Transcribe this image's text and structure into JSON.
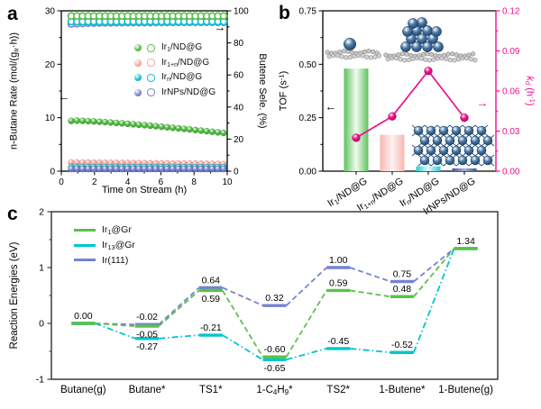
{
  "figure": {
    "panels": {
      "a": "a",
      "b": "b",
      "c": "c"
    }
  },
  "icons": {
    "left_arrow": "←",
    "right_arrow": "→"
  },
  "chart_data": [
    {
      "panel": "a",
      "type": "scatter",
      "x_label_html": "Time on Stream (h)",
      "y_left_label_html": "n-Butane Rate (mol/(g<sub>Ir</sub>·h))",
      "y_right_label_html": "Butene Sele. (%)",
      "x_range": [
        0,
        10
      ],
      "x_ticks": [
        0,
        2,
        4,
        6,
        8,
        10
      ],
      "x_minor": [
        1,
        3,
        5,
        7,
        9
      ],
      "y_left_range": [
        0,
        30
      ],
      "y_left_ticks": [
        0,
        10,
        20,
        30
      ],
      "y_left_minor": [
        5,
        15,
        25
      ],
      "y_right_range": [
        0,
        100
      ],
      "y_right_ticks": [
        0,
        20,
        40,
        60,
        80,
        100
      ],
      "y_right_minor": [
        10,
        30,
        50,
        70,
        90
      ],
      "x": [
        0.6,
        0.94,
        1.28,
        1.62,
        1.96,
        2.3,
        2.64,
        2.98,
        3.32,
        3.66,
        4,
        4.34,
        4.68,
        5.02,
        5.36,
        5.7,
        6.04,
        6.38,
        6.72,
        7.06,
        7.4,
        7.74,
        8.08,
        8.42,
        8.76,
        9.1,
        9.44,
        9.78
      ],
      "series": [
        {
          "id": "sel_Ir1n",
          "label_html": "Ir<sub>1+n</sub>/ND@G selectivity",
          "axis": "right",
          "marker": "open",
          "color": "#f5a8a3",
          "dark": "#e2827d",
          "values": 96.6
        },
        {
          "id": "sel_IrNPs",
          "label_html": "IrNPs/ND@G selectivity",
          "axis": "right",
          "marker": "open",
          "color": "#7b87cd",
          "dark": "#5f6cba",
          "values": [
            91.8,
            92,
            92.15,
            92.3,
            92.4,
            92.45,
            92.5,
            92.55,
            92.6,
            92.6,
            92.65,
            92.65,
            92.7,
            92.7,
            92.7,
            92.75,
            92.75,
            92.75,
            92.8,
            92.8,
            92.8,
            92.8,
            92.85,
            92.85,
            92.85,
            92.85,
            92.9,
            92.9
          ]
        },
        {
          "id": "sel_Irn",
          "label_html": "Ir<sub>n</sub>/ND@G selectivity",
          "axis": "right",
          "marker": "open",
          "color": "#0ec1cb",
          "dark": "#08a0aa",
          "values": 93.3
        },
        {
          "id": "sel_Ir1",
          "label_html": "Ir<sub>1</sub>/ND@G selectivity",
          "axis": "right",
          "marker": "open",
          "color": "#5bbf4c",
          "dark": "#3e9c33",
          "values": 96.8
        },
        {
          "id": "rate_Ir1n",
          "label_html": "Ir<sub>1+n</sub>/ND@G rate",
          "axis": "left",
          "marker": "filled",
          "color": "#f5a8a3",
          "dark": "#e2827d",
          "values": [
            1.62,
            1.61,
            1.6,
            1.59,
            1.58,
            1.57,
            1.56,
            1.55,
            1.54,
            1.53,
            1.52,
            1.51,
            1.5,
            1.49,
            1.48,
            1.47,
            1.46,
            1.45,
            1.44,
            1.43,
            1.42,
            1.41,
            1.4,
            1.39,
            1.38,
            1.36,
            1.34,
            1.32
          ]
        },
        {
          "id": "rate_Irn",
          "label_html": "Ir<sub>n</sub>/ND@G rate",
          "axis": "left",
          "marker": "filled",
          "color": "#0ec1cb",
          "dark": "#08a0aa",
          "values": 0.75
        },
        {
          "id": "rate_IrNPs",
          "label_html": "IrNPs/ND@G rate",
          "axis": "left",
          "marker": "filled",
          "color": "#7b87cd",
          "dark": "#5f6cba",
          "values": 0.4
        },
        {
          "id": "rate_Ir1",
          "label_html": "Ir<sub>1</sub>/ND@G rate",
          "axis": "left",
          "marker": "filled",
          "color": "#5bbf4c",
          "dark": "#3e9c33",
          "values": [
            9.4,
            9.44,
            9.41,
            9.36,
            9.3,
            9.24,
            9.17,
            9.1,
            9.02,
            8.94,
            8.86,
            8.77,
            8.68,
            8.59,
            8.5,
            8.41,
            8.31,
            8.21,
            8.11,
            8.01,
            7.91,
            7.81,
            7.7,
            7.59,
            7.48,
            7.37,
            7.26,
            7.15
          ]
        }
      ],
      "legend": [
        {
          "label_html": "Ir<sub>1</sub>/ND@G",
          "color": "#5bbf4c",
          "dark": "#3e9c33"
        },
        {
          "label_html": "Ir<sub>1+n</sub>/ND@G",
          "color": "#f5a8a3",
          "dark": "#e2827d"
        },
        {
          "label_html": "Ir<sub>n</sub>/ND@G",
          "color": "#0ec1cb",
          "dark": "#08a0aa"
        },
        {
          "label_html": "IrNPs/ND@G",
          "color": "#7b87cd",
          "dark": "#5f6cba"
        }
      ]
    },
    {
      "panel": "b",
      "type": "bar+line",
      "y_left_label_html": "TOF (s<sup>-1</sup>)",
      "y_right_label_html": "<i>k</i><sub>d</sub> (h<sup>-1</sup>)",
      "categories_html": [
        "Ir<sub>1</sub>/ND@G",
        "Ir<sub>1+n</sub>/ND@G",
        "Ir<sub>n</sub>/ND@G",
        "IrNPs/ND@G"
      ],
      "y_left_range": [
        0,
        0.75
      ],
      "y_left_ticks": [
        "0.00",
        "0.25",
        "0.50",
        "0.75"
      ],
      "y_right_range": [
        0,
        0.12
      ],
      "y_right_ticks": [
        "0.00",
        "0.03",
        "0.06",
        "0.09",
        "0.12"
      ],
      "accent_pink": "#f20d8b",
      "bars": {
        "label": "TOF",
        "values": [
          0.48,
          0.17,
          0.023,
          0.013
        ],
        "colors": [
          {
            "edge": "#5ec15e",
            "mid": "#f3fcf1"
          },
          {
            "edge": "#f8b6b1",
            "mid": "#fdf3f1"
          },
          {
            "edge": "#30c9d1",
            "mid": "#e2fafa"
          },
          {
            "edge": "#41538c",
            "mid": "#a9b3d8"
          }
        ]
      },
      "line": {
        "label": "kd",
        "color": "#f20d8b",
        "dark": "#b50766",
        "values": [
          0.025,
          0.041,
          0.075,
          0.04
        ]
      },
      "insets": [
        "single-Ir-atom-on-graphene-model",
        "Ir-cluster-on-graphene-model",
        "Ir-nanoparticle-model"
      ]
    },
    {
      "panel": "c",
      "type": "energy_diagram",
      "y_label": "Reaction Energies (eV)",
      "categories_html": [
        "Butane(g)",
        "Butane*",
        "TS1*",
        "1-C<sub>4</sub>H<sub>9</sub>*",
        "TS2*",
        "1-Butene*",
        "1-Butene(g)"
      ],
      "y_range": [
        -1,
        2
      ],
      "y_ticks": [
        -1,
        0,
        1,
        2
      ],
      "y_minor": [
        -0.5,
        0.5,
        1.5
      ],
      "series": [
        {
          "label_html": "Ir<sub>1</sub>@Gr",
          "color": "#5bc14b",
          "dash": "6 3.5",
          "values": [
            0,
            -0.05,
            0.59,
            -0.6,
            0.59,
            0.48,
            1.34
          ]
        },
        {
          "label_html": "Ir<sub>13</sub>@Gr",
          "color": "#00c5cf",
          "dash": "7 3 1.5 3",
          "values": [
            0,
            -0.27,
            -0.21,
            -0.65,
            -0.45,
            -0.52,
            1.34
          ]
        },
        {
          "label_html": "Ir(111)",
          "color": "#7584cf",
          "dash": "6 3.5",
          "values": [
            0,
            -0.02,
            0.64,
            0.32,
            1,
            0.75,
            1.34
          ]
        }
      ],
      "value_labels": [
        {
          "ci": 0,
          "v": 0,
          "text": "0.00",
          "pos": "above"
        },
        {
          "ci": 1,
          "v": -0.02,
          "text": "-0.02",
          "pos": "above"
        },
        {
          "ci": 1,
          "v": -0.05,
          "text": "-0.05",
          "pos": "below"
        },
        {
          "ci": 1,
          "v": -0.27,
          "text": "-0.27",
          "pos": "below"
        },
        {
          "ci": 2,
          "v": 0.64,
          "text": "0.64",
          "pos": "above"
        },
        {
          "ci": 2,
          "v": 0.59,
          "text": "0.59",
          "pos": "below"
        },
        {
          "ci": 2,
          "v": -0.21,
          "text": "-0.21",
          "pos": "above"
        },
        {
          "ci": 3,
          "v": 0.32,
          "text": "0.32",
          "pos": "above"
        },
        {
          "ci": 3,
          "v": -0.6,
          "text": "-0.60",
          "pos": "above"
        },
        {
          "ci": 3,
          "v": -0.65,
          "text": "-0.65",
          "pos": "below"
        },
        {
          "ci": 4,
          "v": 1,
          "text": "1.00",
          "pos": "above"
        },
        {
          "ci": 4,
          "v": 0.59,
          "text": "0.59",
          "pos": "above"
        },
        {
          "ci": 4,
          "v": -0.45,
          "text": "-0.45",
          "pos": "above"
        },
        {
          "ci": 5,
          "v": 0.75,
          "text": "0.75",
          "pos": "above"
        },
        {
          "ci": 5,
          "v": 0.48,
          "text": "0.48",
          "pos": "above"
        },
        {
          "ci": 5,
          "v": -0.52,
          "text": "-0.52",
          "pos": "above"
        },
        {
          "ci": 6,
          "v": 1.34,
          "text": "1.34",
          "pos": "above"
        }
      ]
    }
  ]
}
